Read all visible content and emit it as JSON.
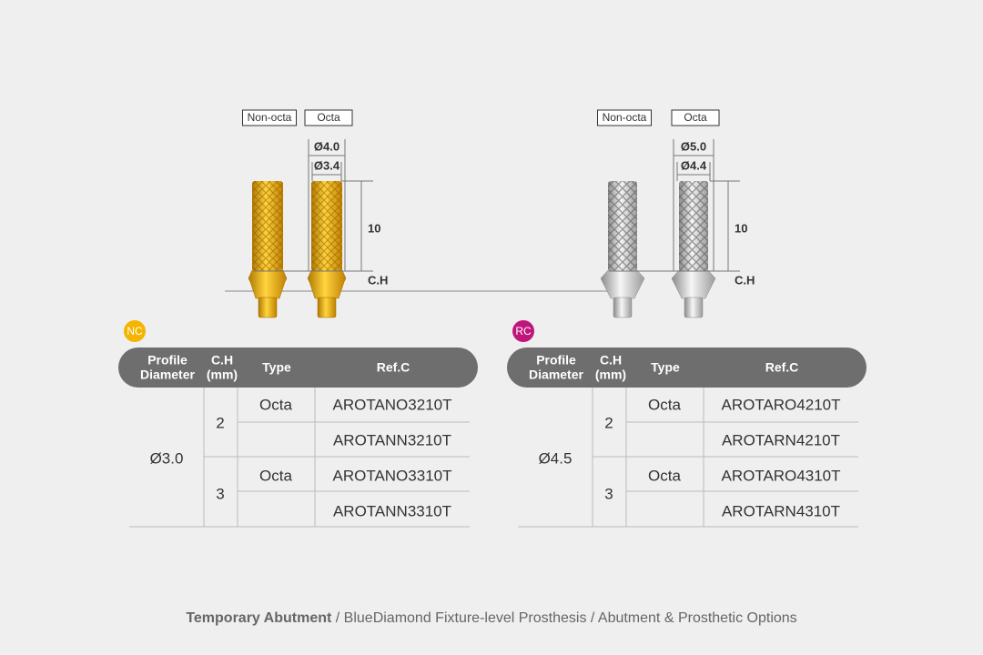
{
  "groups": [
    {
      "badge": "NC",
      "labels": [
        "Non-octa",
        "Octa"
      ],
      "outer": "Ø4.0",
      "inner": "Ø3.4",
      "height": "10",
      "ch": "C.H",
      "table": {
        "header": [
          [
            "Profile",
            "Diameter"
          ],
          [
            "C.H",
            "(mm)"
          ],
          [
            "Type"
          ],
          [
            "Ref.C"
          ]
        ],
        "diameter": "Ø3.0",
        "groups": [
          {
            "ch": "2",
            "rows": [
              {
                "type": "Octa",
                "ref": "AROTANO3210T"
              },
              {
                "ref": "AROTANN3210T"
              }
            ]
          },
          {
            "ch": "3",
            "rows": [
              {
                "type": "Octa",
                "ref": "AROTANO3310T"
              },
              {
                "ref": "AROTANN3310T"
              }
            ]
          }
        ]
      }
    },
    {
      "badge": "RC",
      "labels": [
        "Non-octa",
        "Octa"
      ],
      "outer": "Ø5.0",
      "inner": "Ø4.4",
      "height": "10",
      "ch": "C.H",
      "table": {
        "header": [
          [
            "Profile",
            "Diameter"
          ],
          [
            "C.H",
            "(mm)"
          ],
          [
            "Type"
          ],
          [
            "Ref.C"
          ]
        ],
        "diameter": "Ø4.5",
        "groups": [
          {
            "ch": "2",
            "rows": [
              {
                "type": "Octa",
                "ref": "AROTARO4210T"
              },
              {
                "ref": "AROTARN4210T"
              }
            ]
          },
          {
            "ch": "3",
            "rows": [
              {
                "type": "Octa",
                "ref": "AROTARO4310T"
              },
              {
                "ref": "AROTARN4310T"
              }
            ]
          }
        ]
      }
    }
  ],
  "footer": {
    "bold": "Temporary Abutment",
    "rest": " / BlueDiamond Fixture-level Prosthesis / Abutment & Prosthetic Options"
  }
}
